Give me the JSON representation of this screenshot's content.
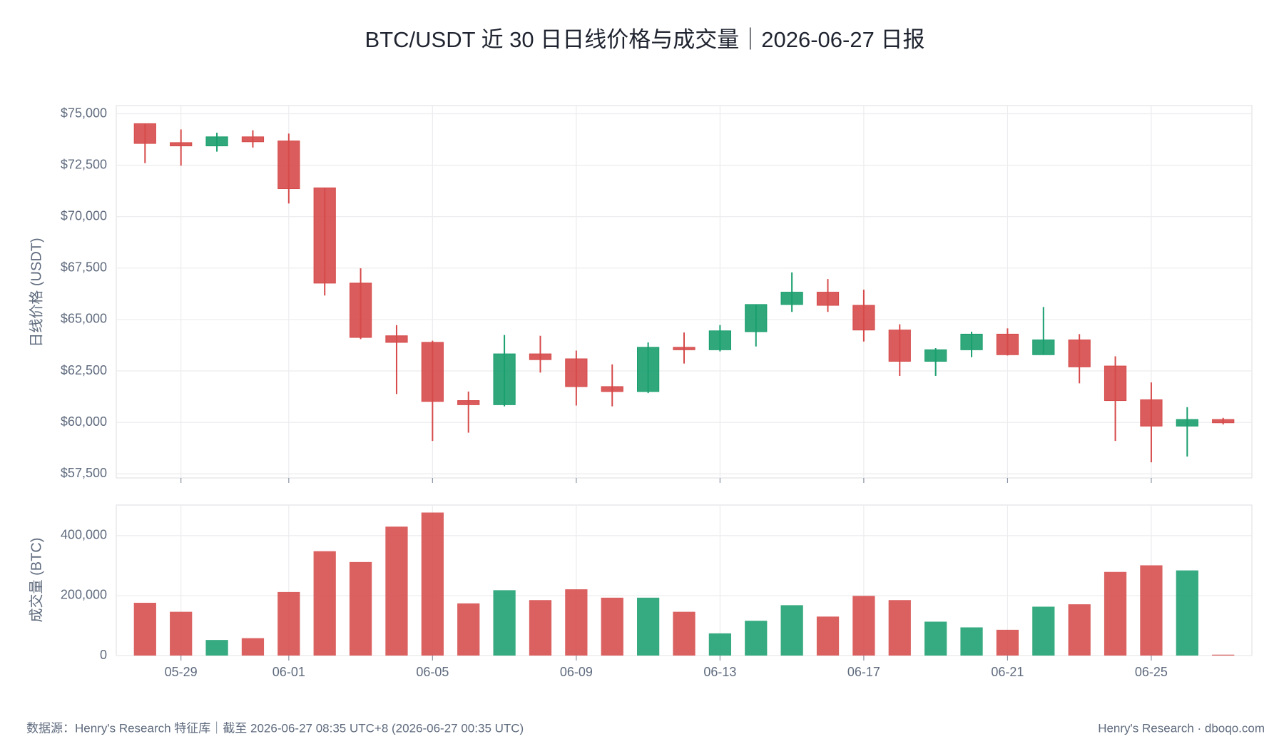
{
  "chart_data": [
    {
      "type": "candlestick",
      "title": "BTC/USDT 近 30 日日线价格与成交量｜2026-06-27 日报",
      "y_label": "日线价格 (USDT)",
      "categories": [
        null,
        "05-29",
        null,
        null,
        "06-01",
        null,
        null,
        null,
        "06-05",
        null,
        null,
        null,
        "06-09",
        null,
        null,
        null,
        "06-13",
        null,
        null,
        null,
        "06-17",
        null,
        null,
        null,
        "06-21",
        null,
        null,
        null,
        "06-25",
        null,
        null
      ],
      "open": [
        74520,
        73600,
        73440,
        73880,
        73680,
        71400,
        66770,
        64210,
        63890,
        61060,
        60860,
        63330,
        63090,
        61740,
        61500,
        63650,
        63530,
        64410,
        65730,
        66330,
        65690,
        64490,
        62970,
        63530,
        64290,
        63290,
        64010,
        62740,
        61100,
        59820,
        60140
      ],
      "high": [
        74520,
        74240,
        74080,
        74200,
        74040,
        71400,
        67490,
        64730,
        63970,
        61500,
        64250,
        64210,
        63490,
        62820,
        63890,
        64370,
        64730,
        65730,
        67290,
        66970,
        66450,
        64770,
        63610,
        64410,
        64570,
        65610,
        64290,
        63210,
        61940,
        60740,
        60220
      ],
      "low": [
        72600,
        72480,
        73160,
        73360,
        70640,
        66170,
        64050,
        61380,
        59100,
        59500,
        60780,
        62420,
        60820,
        60780,
        61420,
        62860,
        63450,
        63690,
        65370,
        65370,
        63930,
        62260,
        62260,
        63170,
        63250,
        63290,
        61900,
        59100,
        58060,
        58340,
        59900
      ],
      "close": [
        73560,
        73440,
        73880,
        73640,
        71360,
        66770,
        64130,
        63890,
        61020,
        60860,
        63330,
        63050,
        61740,
        61500,
        63650,
        63530,
        64450,
        65730,
        66330,
        65690,
        64490,
        62970,
        63530,
        64290,
        63290,
        64010,
        62700,
        61060,
        59820,
        60140,
        59980
      ],
      "up_color": "#1a9e6e",
      "down_color": "#d64a4a",
      "ylim": [
        57300,
        75400
      ],
      "yticks": [
        {
          "value": 57500,
          "label": "$57,500"
        },
        {
          "value": 60000,
          "label": "$60,000"
        },
        {
          "value": 62500,
          "label": "$62,500"
        },
        {
          "value": 65000,
          "label": "$65,000"
        },
        {
          "value": 67500,
          "label": "$67,500"
        },
        {
          "value": 70000,
          "label": "$70,000"
        },
        {
          "value": 72500,
          "label": "$72,500"
        },
        {
          "value": 75000,
          "label": "$75,000"
        }
      ],
      "grid": true
    },
    {
      "type": "bar",
      "y_label": "成交量 (BTC)",
      "categories": [
        null,
        "05-29",
        null,
        null,
        "06-01",
        null,
        null,
        null,
        "06-05",
        null,
        null,
        null,
        "06-09",
        null,
        null,
        null,
        "06-13",
        null,
        null,
        null,
        "06-17",
        null,
        null,
        null,
        "06-21",
        null,
        null,
        null,
        "06-25",
        null,
        null
      ],
      "values": [
        176000,
        146000,
        52000,
        58000,
        212000,
        348000,
        312000,
        430000,
        477000,
        174000,
        218000,
        185000,
        221000,
        193000,
        193000,
        146000,
        74000,
        116000,
        168000,
        130000,
        199000,
        185000,
        113000,
        94000,
        86000,
        163000,
        171000,
        279000,
        301000,
        284000,
        3000
      ],
      "ylim": [
        0,
        502000
      ],
      "yticks": [
        0,
        {
          "value": 200000,
          "label": "200,000"
        },
        {
          "value": 400000,
          "label": "400,000"
        }
      ],
      "grid": true
    }
  ],
  "footer": {
    "source": "数据源：Henry's Research 特征库｜截至 2026-06-27 08:35 UTC+8 (2026-06-27 00:35 UTC)",
    "brand": "Henry's Research · dboqo.com"
  }
}
